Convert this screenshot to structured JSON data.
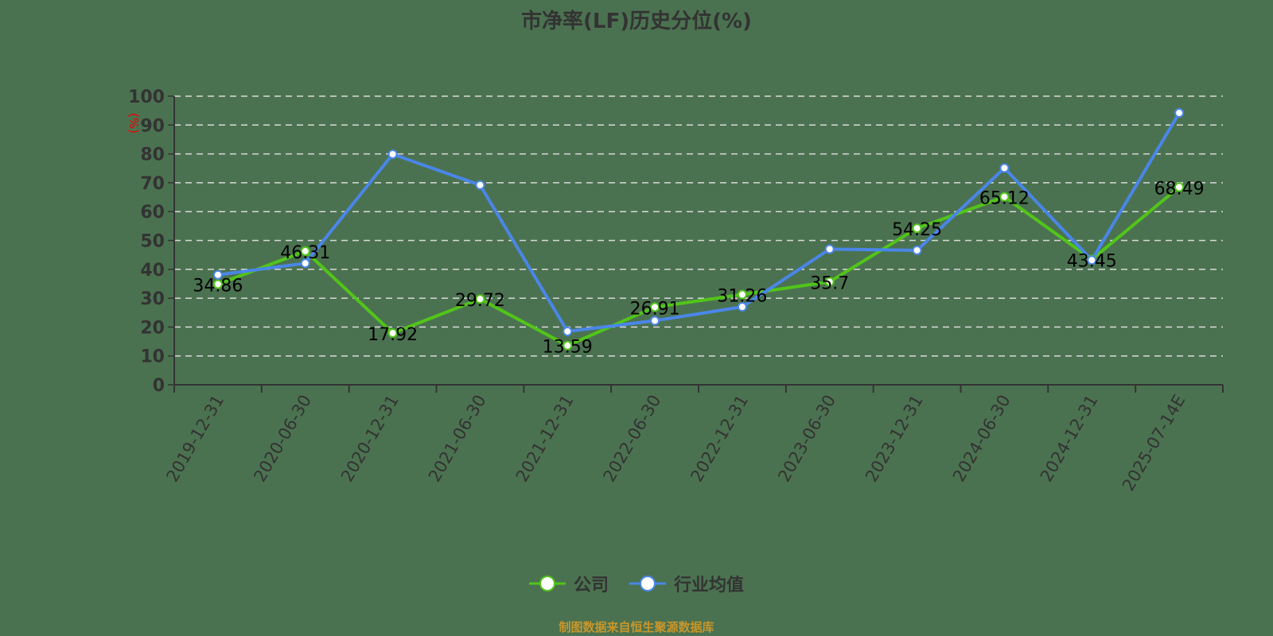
{
  "chart_data": {
    "type": "line",
    "title": "市净率(LF)历史分位(%)",
    "ylabel": "(%)",
    "xlabel": "",
    "ylim": [
      0,
      100
    ],
    "yticks": [
      0,
      10,
      20,
      30,
      40,
      50,
      60,
      70,
      80,
      90,
      100
    ],
    "grid": true,
    "legend_position": "bottom",
    "categories": [
      "2019-12-31",
      "2020-06-30",
      "2020-12-31",
      "2021-06-30",
      "2021-12-31",
      "2022-06-30",
      "2022-12-31",
      "2023-06-30",
      "2023-12-31",
      "2024-06-30",
      "2024-12-31",
      "2025-07-14E"
    ],
    "series": [
      {
        "name": "公司",
        "color": "#52c41a",
        "values": [
          34.86,
          46.31,
          17.92,
          29.72,
          13.59,
          26.91,
          31.26,
          35.7,
          54.25,
          65.12,
          43.45,
          68.49
        ],
        "labels": true
      },
      {
        "name": "行业均值",
        "color": "#4a86e8",
        "values": [
          38.1,
          42.1,
          79.9,
          69.2,
          18.5,
          22.2,
          27.0,
          47.0,
          46.6,
          75.1,
          43.2,
          94.2
        ],
        "labels": false
      }
    ]
  },
  "legend": {
    "company": "公司",
    "industry": "行业均值"
  },
  "footer": "制图数据来自恒生聚源数据库"
}
